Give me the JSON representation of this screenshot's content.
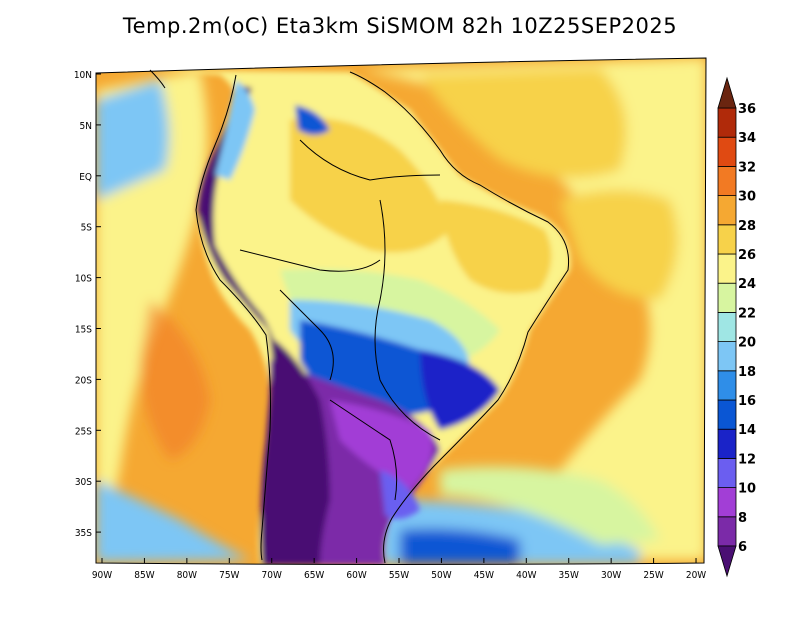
{
  "title": "Temp.2m(oC) Eta3km SiSMOM 82h 10Z25SEP2025",
  "axes": {
    "lon_labels": [
      "90W",
      "85W",
      "80W",
      "75W",
      "70W",
      "65W",
      "60W",
      "55W",
      "50W",
      "45W",
      "40W",
      "35W",
      "30W",
      "25W",
      "20W"
    ],
    "lat_labels": [
      "10N",
      "5N",
      "EQ",
      "5S",
      "10S",
      "15S",
      "20S",
      "25S",
      "30S",
      "35S"
    ]
  },
  "colorbar": {
    "levels": [
      "6",
      "8",
      "10",
      "12",
      "14",
      "16",
      "18",
      "20",
      "22",
      "24",
      "26",
      "28",
      "30",
      "32",
      "34",
      "36"
    ],
    "colors": [
      "#4a0f73",
      "#7b2aa8",
      "#a23ed6",
      "#6b5ef0",
      "#1a23c8",
      "#0a56d4",
      "#2f8ee8",
      "#7dc6f5",
      "#9fe6e4",
      "#d7f5a0",
      "#fbf38a",
      "#f7d24a",
      "#f5a832",
      "#f27a23",
      "#e04a12",
      "#b02a0a",
      "#7a1d08"
    ],
    "under_color": "#4a0f73",
    "over_color": "#6a2510"
  },
  "colors": {
    "ocean_base": "#f5a832",
    "cold_core": "#4a0f73",
    "borders": "#000000"
  }
}
